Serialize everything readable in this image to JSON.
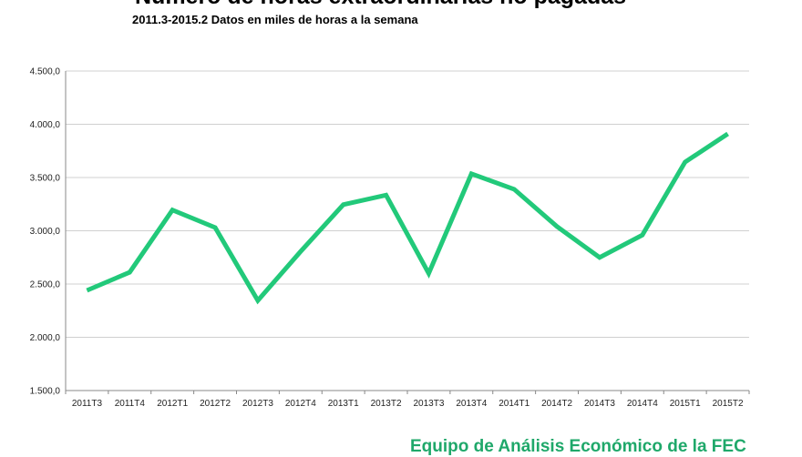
{
  "chart_data": {
    "type": "line",
    "title": "Número de horas extraordinarias no pagadas",
    "subtitle": "2011.3-2015.2 Datos en miles de horas a la semana",
    "xlabel": "",
    "ylabel": "",
    "categories": [
      "2011T3",
      "2011T4",
      "2012T1",
      "2012T2",
      "2012T3",
      "2012T4",
      "2013T1",
      "2013T2",
      "2013T3",
      "2013T4",
      "2014T1",
      "2014T2",
      "2014T3",
      "2014T4",
      "2015T1",
      "2015T2"
    ],
    "series": [
      {
        "values": [
          2440,
          2610,
          3195,
          3030,
          2345,
          2805,
          3245,
          3335,
          2600,
          3535,
          3390,
          3040,
          2750,
          2960,
          3645,
          3910
        ]
      }
    ],
    "ylim": [
      1500,
      4500
    ],
    "yticks": [
      "1.500,0",
      "2.000,0",
      "2.500,0",
      "3.000,0",
      "3.500,0",
      "4.000,0",
      "4.500,0"
    ],
    "ytick_values": [
      1500,
      2000,
      2500,
      3000,
      3500,
      4000,
      4500
    ],
    "grid": true,
    "legend": "none",
    "line_color": "#22c97a"
  },
  "footer": {
    "credit": "Equipo de Análisis Económico de la FEC"
  }
}
